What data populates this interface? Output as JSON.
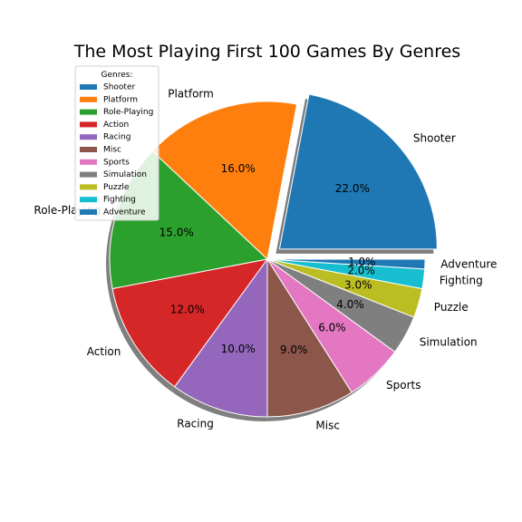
{
  "chart_data": {
    "type": "pie",
    "title": "The Most Playing First 100 Games By Genres",
    "legend_title": "Genres:",
    "legend_position": "top-left",
    "shadow": true,
    "start_angle_deg": 0,
    "direction": "counterclockwise",
    "exploded": [
      "Shooter"
    ],
    "slices": [
      {
        "label": "Shooter",
        "value": 22,
        "pct_label": "22.0%",
        "color": "#1f77b4"
      },
      {
        "label": "Platform",
        "value": 16,
        "pct_label": "16.0%",
        "color": "#ff7f0e"
      },
      {
        "label": "Role-Playing",
        "value": 15,
        "pct_label": "15.0%",
        "color": "#2ca02c"
      },
      {
        "label": "Action",
        "value": 12,
        "pct_label": "12.0%",
        "color": "#d62728"
      },
      {
        "label": "Racing",
        "value": 10,
        "pct_label": "10.0%",
        "color": "#9467bd"
      },
      {
        "label": "Misc",
        "value": 9,
        "pct_label": "9.0%",
        "color": "#8c564b"
      },
      {
        "label": "Sports",
        "value": 6,
        "pct_label": "6.0%",
        "color": "#e377c2"
      },
      {
        "label": "Simulation",
        "value": 4,
        "pct_label": "4.0%",
        "color": "#7f7f7f"
      },
      {
        "label": "Puzzle",
        "value": 3,
        "pct_label": "3.0%",
        "color": "#bcbd22"
      },
      {
        "label": "Fighting",
        "value": 2,
        "pct_label": "2.0%",
        "color": "#17becf"
      },
      {
        "label": "Adventure",
        "value": 1,
        "pct_label": "1.0%",
        "color": "#1f77b4"
      }
    ]
  }
}
